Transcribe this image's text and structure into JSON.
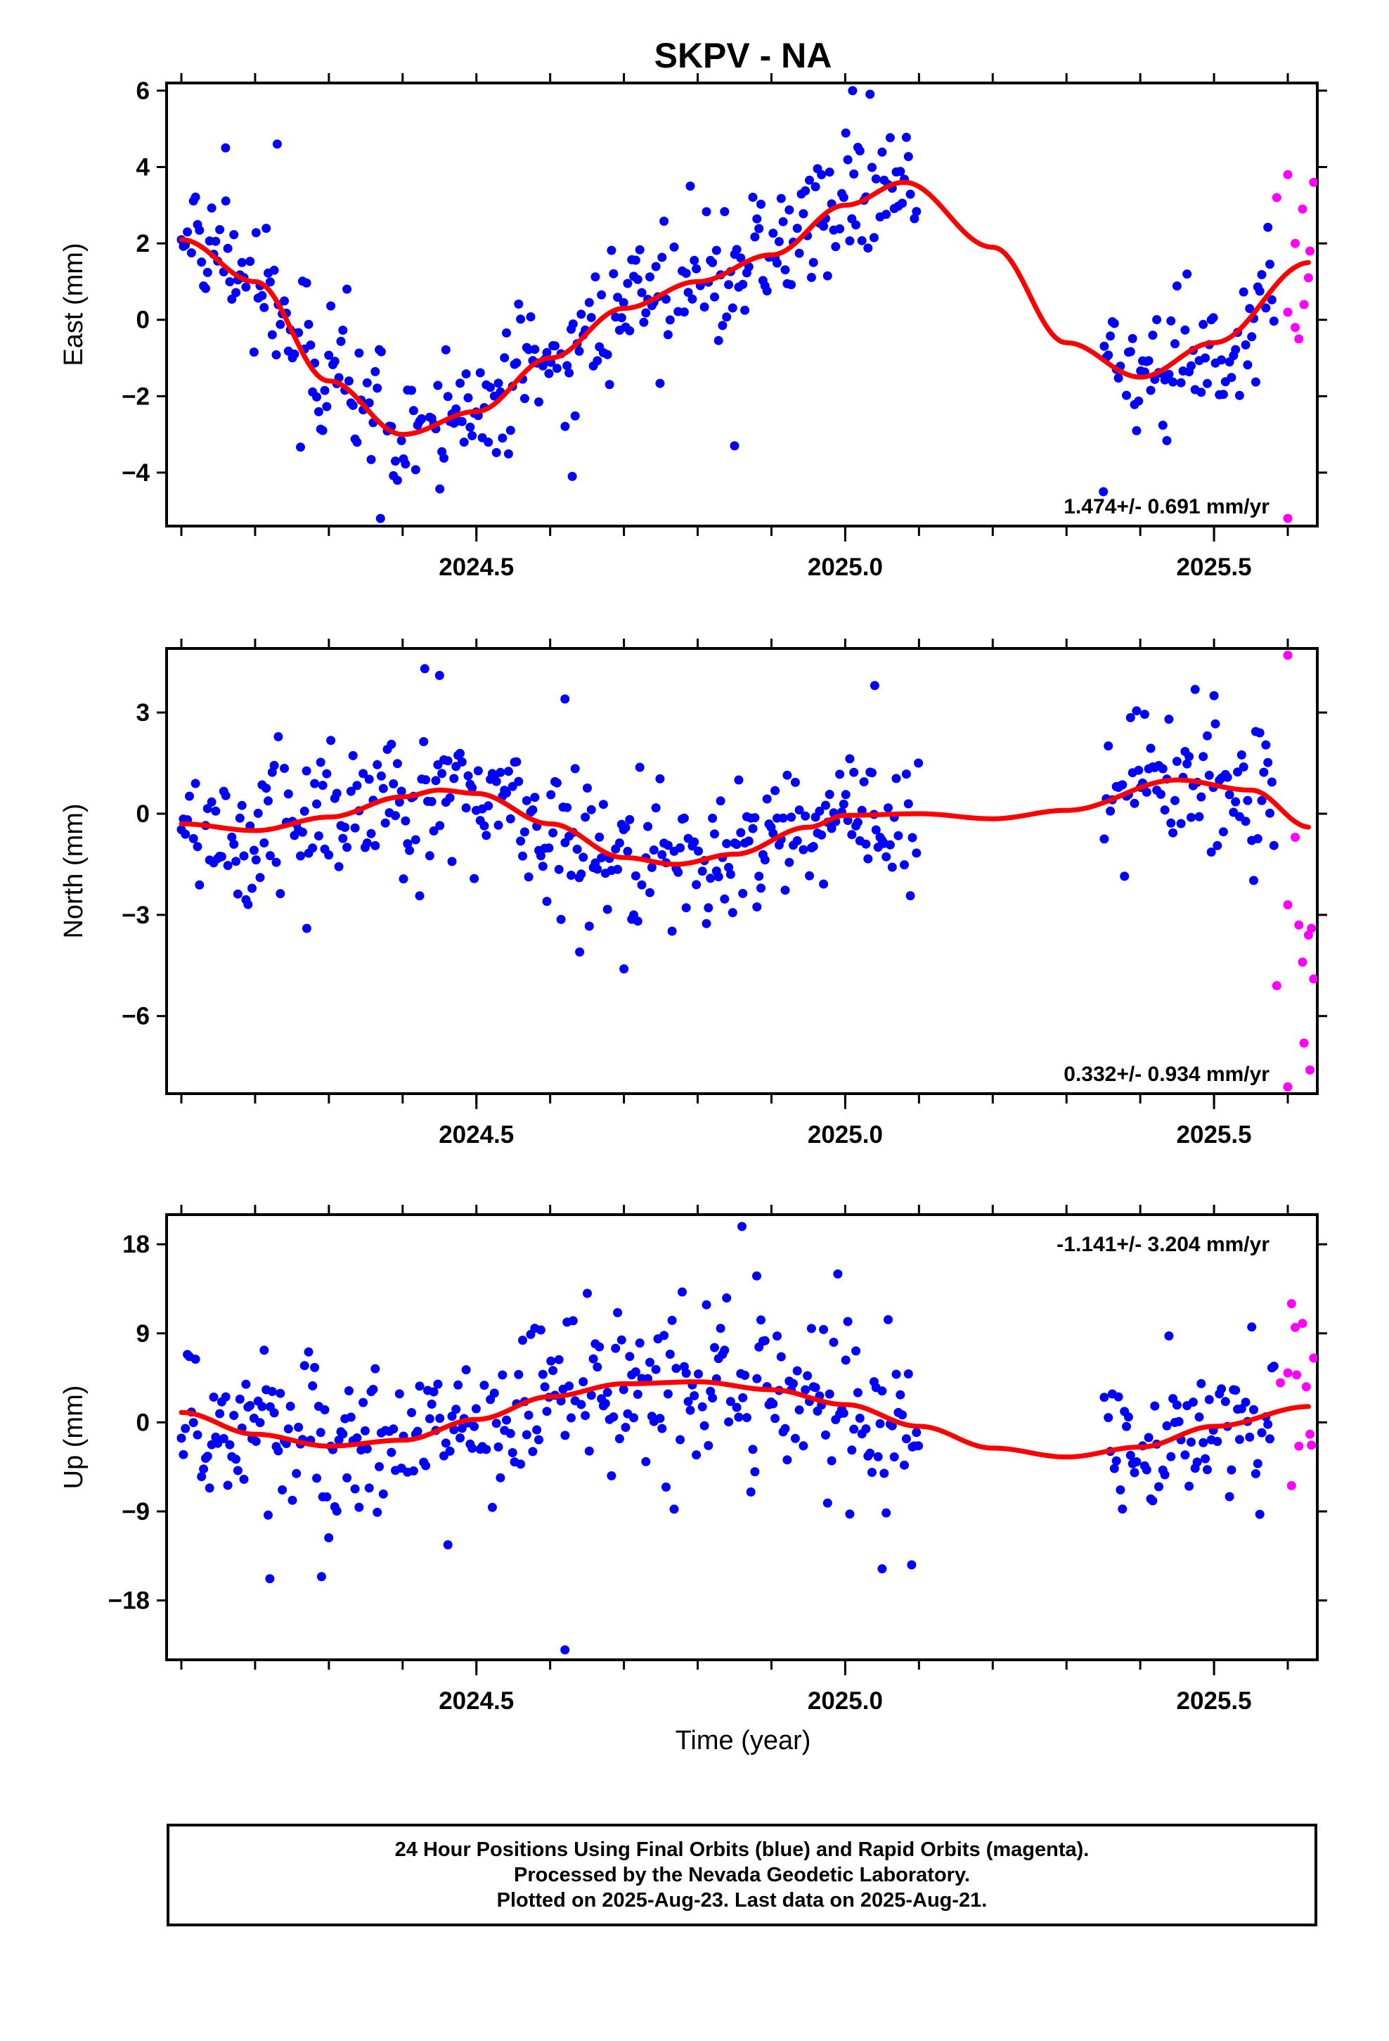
{
  "title": "SKPV - NA",
  "colors": {
    "final": "#0000ff",
    "rapid": "#ff00ff",
    "fit": "#ff0000",
    "frame": "#000000"
  },
  "chart_data": [
    {
      "type": "scatter",
      "name": "east",
      "title": "SKPV - NA",
      "ylabel": "East (mm)",
      "xlabel": "",
      "xlim": [
        2024.08,
        2025.64
      ],
      "ylim": [
        -5.4,
        6.2
      ],
      "yticks": [
        -4,
        -2,
        0,
        2,
        4,
        6
      ],
      "ytick_labels": [
        "−4",
        "−2",
        "0",
        "2",
        "4",
        "6"
      ],
      "xticks": [
        2024.5,
        2025.0,
        2025.5
      ],
      "xtick_labels": [
        "2024.5",
        "2025.0",
        "2025.5"
      ],
      "rate_label": "1.474+/- 0.691 mm/yr",
      "rate_position": "bottom-right",
      "fit": {
        "x": [
          2024.1,
          2024.2,
          2024.3,
          2024.4,
          2024.5,
          2024.6,
          2024.7,
          2024.8,
          2024.9,
          2025.0,
          2025.08,
          2025.2,
          2025.3,
          2025.4,
          2025.5,
          2025.63
        ],
        "y": [
          2.1,
          1.0,
          -1.6,
          -3.0,
          -2.4,
          -1.0,
          0.3,
          1.0,
          1.7,
          3.0,
          3.6,
          1.9,
          -0.6,
          -1.5,
          -0.6,
          1.5
        ]
      },
      "gap": [
        2025.1,
        2025.35
      ],
      "rapid_points": [
        {
          "x": 2025.585,
          "y": 3.2
        },
        {
          "x": 2025.6,
          "y": 3.8
        },
        {
          "x": 2025.61,
          "y": 2.0
        },
        {
          "x": 2025.62,
          "y": 2.9
        },
        {
          "x": 2025.63,
          "y": 1.8
        },
        {
          "x": 2025.635,
          "y": 3.6
        },
        {
          "x": 2025.6,
          "y": 0.2
        },
        {
          "x": 2025.61,
          "y": -0.2
        },
        {
          "x": 2025.615,
          "y": -0.5
        },
        {
          "x": 2025.622,
          "y": 0.4
        },
        {
          "x": 2025.628,
          "y": 1.1
        },
        {
          "x": 2025.6,
          "y": -5.2
        }
      ],
      "scatter_sd": 0.9,
      "outliers": [
        {
          "x": 2024.23,
          "y": 4.6
        },
        {
          "x": 2024.16,
          "y": 4.5
        },
        {
          "x": 2024.37,
          "y": -5.2
        },
        {
          "x": 2024.85,
          "y": -3.3
        },
        {
          "x": 2024.63,
          "y": -4.1
        },
        {
          "x": 2025.35,
          "y": -4.5
        },
        {
          "x": 2025.01,
          "y": 6.0
        },
        {
          "x": 2024.79,
          "y": 3.5
        }
      ]
    },
    {
      "type": "scatter",
      "name": "north",
      "ylabel": "North (mm)",
      "xlabel": "",
      "xlim": [
        2024.08,
        2025.64
      ],
      "ylim": [
        -8.3,
        4.9
      ],
      "yticks": [
        -6,
        -3,
        0,
        3
      ],
      "ytick_labels": [
        "−6",
        "−3",
        "0",
        "3"
      ],
      "xticks": [
        2024.5,
        2025.0,
        2025.5
      ],
      "xtick_labels": [
        "2024.5",
        "2025.0",
        "2025.5"
      ],
      "rate_label": "0.332+/- 0.934 mm/yr",
      "rate_position": "bottom-right",
      "fit": {
        "x": [
          2024.1,
          2024.2,
          2024.3,
          2024.4,
          2024.45,
          2024.5,
          2024.6,
          2024.7,
          2024.77,
          2024.85,
          2024.95,
          2025.0,
          2025.1,
          2025.2,
          2025.3,
          2025.45,
          2025.55,
          2025.63
        ],
        "y": [
          -0.3,
          -0.5,
          -0.1,
          0.5,
          0.7,
          0.6,
          -0.3,
          -1.3,
          -1.5,
          -1.2,
          -0.4,
          -0.05,
          0.0,
          -0.15,
          0.1,
          1.0,
          0.7,
          -0.4
        ]
      },
      "gap": [
        2025.1,
        2025.35
      ],
      "rapid_points": [
        {
          "x": 2025.6,
          "y": 4.7
        },
        {
          "x": 2025.61,
          "y": -0.7
        },
        {
          "x": 2025.585,
          "y": -5.1
        },
        {
          "x": 2025.6,
          "y": -2.7
        },
        {
          "x": 2025.615,
          "y": -3.3
        },
        {
          "x": 2025.62,
          "y": -4.4
        },
        {
          "x": 2025.628,
          "y": -3.6
        },
        {
          "x": 2025.635,
          "y": -4.9
        },
        {
          "x": 2025.622,
          "y": -6.8
        },
        {
          "x": 2025.63,
          "y": -7.6
        },
        {
          "x": 2025.6,
          "y": -8.1
        },
        {
          "x": 2025.632,
          "y": -3.4
        }
      ],
      "scatter_sd": 1.1,
      "outliers": [
        {
          "x": 2024.43,
          "y": 4.3
        },
        {
          "x": 2024.45,
          "y": 4.1
        },
        {
          "x": 2024.7,
          "y": -4.6
        },
        {
          "x": 2024.64,
          "y": -4.1
        },
        {
          "x": 2025.04,
          "y": 3.8
        },
        {
          "x": 2025.5,
          "y": 3.5
        },
        {
          "x": 2024.27,
          "y": -3.4
        },
        {
          "x": 2024.62,
          "y": 3.4
        }
      ]
    },
    {
      "type": "scatter",
      "name": "up",
      "ylabel": "Up (mm)",
      "xlabel": "Time (year)",
      "xlim": [
        2024.08,
        2025.64
      ],
      "ylim": [
        -24.0,
        21.0
      ],
      "yticks": [
        -18,
        -9,
        0,
        9,
        18
      ],
      "ytick_labels": [
        "−18",
        "−9",
        "0",
        "9",
        "18"
      ],
      "xticks": [
        2024.5,
        2025.0,
        2025.5
      ],
      "xtick_labels": [
        "2024.5",
        "2025.0",
        "2025.5"
      ],
      "rate_label": "-1.141+/- 3.204 mm/yr",
      "rate_position": "top-right",
      "fit": {
        "x": [
          2024.1,
          2024.2,
          2024.3,
          2024.4,
          2024.5,
          2024.6,
          2024.7,
          2024.8,
          2024.9,
          2025.0,
          2025.1,
          2025.2,
          2025.3,
          2025.4,
          2025.5,
          2025.63
        ],
        "y": [
          1.0,
          -1.2,
          -2.4,
          -1.8,
          0.3,
          2.6,
          3.9,
          4.1,
          3.3,
          1.8,
          -0.4,
          -2.6,
          -3.5,
          -2.5,
          -0.4,
          1.6
        ]
      },
      "gap": [
        2025.1,
        2025.35
      ],
      "rapid_points": [
        {
          "x": 2025.605,
          "y": 12.0
        },
        {
          "x": 2025.62,
          "y": 10.0
        },
        {
          "x": 2025.61,
          "y": 9.6
        },
        {
          "x": 2025.635,
          "y": 6.5
        },
        {
          "x": 2025.6,
          "y": 5.0
        },
        {
          "x": 2025.612,
          "y": 4.8
        },
        {
          "x": 2025.625,
          "y": 3.6
        },
        {
          "x": 2025.63,
          "y": -1.2
        },
        {
          "x": 2025.615,
          "y": -2.4
        },
        {
          "x": 2025.632,
          "y": -2.3
        },
        {
          "x": 2025.605,
          "y": -6.4
        },
        {
          "x": 2025.59,
          "y": 4.0
        }
      ],
      "scatter_sd": 4.2,
      "outliers": [
        {
          "x": 2024.86,
          "y": 19.8
        },
        {
          "x": 2024.62,
          "y": -23.0
        },
        {
          "x": 2024.22,
          "y": -15.8
        },
        {
          "x": 2024.29,
          "y": -15.6
        },
        {
          "x": 2025.05,
          "y": -14.8
        },
        {
          "x": 2025.09,
          "y": -14.4
        },
        {
          "x": 2024.99,
          "y": 15.0
        },
        {
          "x": 2024.88,
          "y": 14.8
        }
      ]
    }
  ],
  "footer": {
    "line1": "24 Hour Positions Using Final Orbits (blue) and Rapid Orbits (magenta).",
    "line2": "Processed by the Nevada Geodetic Laboratory.",
    "line3": "Plotted on 2025-Aug-23. Last data on 2025-Aug-21."
  }
}
